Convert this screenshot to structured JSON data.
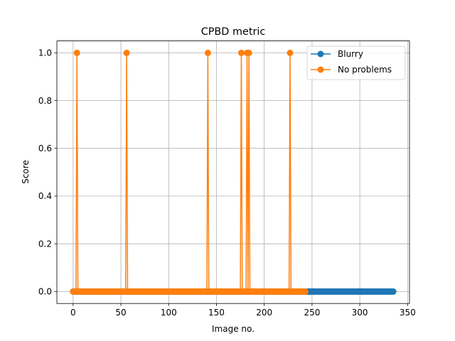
{
  "chart_data": {
    "type": "line",
    "title": "CPBD metric",
    "xlabel": "Image no.",
    "ylabel": "Score",
    "xlim": [
      -17,
      352
    ],
    "ylim": [
      -0.05,
      1.05
    ],
    "xticks": [
      0,
      50,
      100,
      150,
      200,
      250,
      300,
      350
    ],
    "yticks": [
      0.0,
      0.2,
      0.4,
      0.6,
      0.8,
      1.0
    ],
    "xtick_labels": [
      "0",
      "50",
      "100",
      "150",
      "200",
      "250",
      "300",
      "350"
    ],
    "ytick_labels": [
      "0.0",
      "0.2",
      "0.4",
      "0.6",
      "0.8",
      "1.0"
    ],
    "grid": true,
    "legend_position": "top-right",
    "series": [
      {
        "name": "Blurry",
        "color": "#1f77b4",
        "marker": "circle",
        "x_range": [
          0,
          335
        ],
        "default_value": 0.0,
        "spikes": []
      },
      {
        "name": "No problems",
        "color": "#ff7f0e",
        "marker": "circle",
        "x_range": [
          0,
          243
        ],
        "default_value": 0.0,
        "spikes": [
          {
            "x": 4,
            "value": 1.0
          },
          {
            "x": 56,
            "value": 1.0
          },
          {
            "x": 141,
            "value": 1.0
          },
          {
            "x": 176,
            "value": 1.0
          },
          {
            "x": 182,
            "value": 1.0
          },
          {
            "x": 184,
            "value": 1.0
          },
          {
            "x": 227,
            "value": 1.0
          }
        ]
      }
    ]
  }
}
